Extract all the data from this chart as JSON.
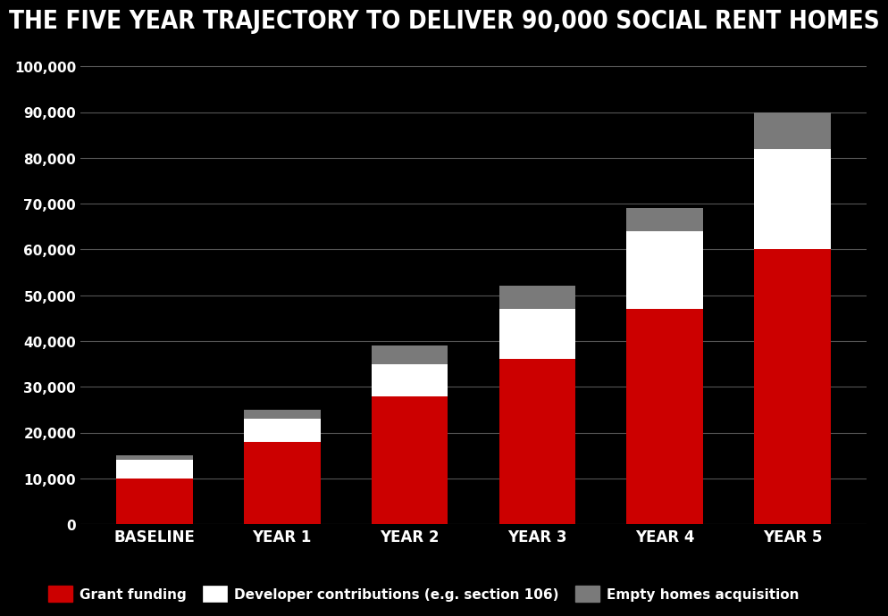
{
  "categories": [
    "BASELINE",
    "YEAR 1",
    "YEAR 2",
    "YEAR 3",
    "YEAR 4",
    "YEAR 5"
  ],
  "grant_funding": [
    10000,
    18000,
    28000,
    36000,
    47000,
    60000
  ],
  "developer_contributions": [
    4000,
    5000,
    7000,
    11000,
    17000,
    22000
  ],
  "empty_homes": [
    1000,
    2000,
    4000,
    5000,
    5000,
    8000
  ],
  "colors": {
    "grant_funding": "#cc0000",
    "developer_contributions": "#ffffff",
    "empty_homes": "#7a7a7a",
    "background": "#000000",
    "text": "#ffffff",
    "grid": "#555555"
  },
  "title": "THE FIVE YEAR TRAJECTORY TO DELIVER 90,000 SOCIAL RENT HOMES",
  "title_fontsize": 20,
  "legend_labels": [
    "Grant funding",
    "Developer contributions (e.g. section 106)",
    "Empty homes acquisition"
  ],
  "ylim": [
    0,
    105000
  ],
  "yticks": [
    0,
    10000,
    20000,
    30000,
    40000,
    50000,
    60000,
    70000,
    80000,
    90000,
    100000
  ],
  "ytick_labels": [
    "0",
    "10,000",
    "20,000",
    "30,000",
    "40,000",
    "50,000",
    "60,000",
    "70,000",
    "80,000",
    "90,000",
    "100,000"
  ],
  "bar_width": 0.6
}
